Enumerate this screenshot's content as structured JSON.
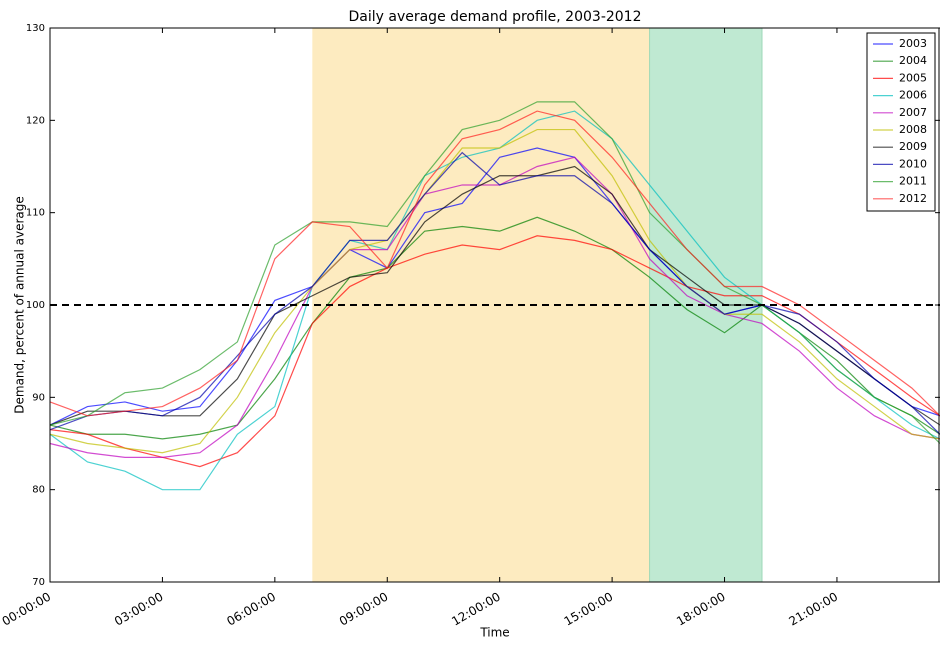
{
  "chart_data": {
    "type": "line",
    "title": "Daily average demand profile, 2003-2012",
    "x_label": "Time",
    "y_label": "Demand, percent of annual average",
    "x": [
      0,
      1,
      2,
      3,
      4,
      5,
      6,
      7,
      8,
      9,
      10,
      11,
      12,
      13,
      14,
      15,
      16,
      17,
      18,
      19,
      20,
      21,
      22,
      23,
      23.75
    ],
    "xlim": [
      0,
      23.75
    ],
    "xticks": [
      {
        "value": 0,
        "label": "00:00:00"
      },
      {
        "value": 3,
        "label": "03:00:00"
      },
      {
        "value": 6,
        "label": "06:00:00"
      },
      {
        "value": 9,
        "label": "09:00:00"
      },
      {
        "value": 12,
        "label": "12:00:00"
      },
      {
        "value": 15,
        "label": "15:00:00"
      },
      {
        "value": 18,
        "label": "18:00:00"
      },
      {
        "value": 21,
        "label": "21:00:00"
      }
    ],
    "ylim": [
      70,
      130
    ],
    "yticks": [
      70,
      80,
      90,
      100,
      110,
      120,
      130
    ],
    "grid": false,
    "legend": "upper right",
    "reference_line": 100,
    "spans": [
      {
        "x0": 7,
        "x1": 16,
        "color": "#fdebc0"
      },
      {
        "x0": 16,
        "x1": 19,
        "color": "#bfe9d2"
      }
    ],
    "series": [
      {
        "name": "2003",
        "color": "#0000ff",
        "values": [
          87,
          89,
          89.5,
          88.5,
          89,
          94,
          100.5,
          102,
          106,
          104,
          110,
          111,
          116,
          117,
          116,
          111,
          106,
          102,
          99,
          100,
          98,
          95,
          92,
          89,
          88
        ]
      },
      {
        "name": "2004",
        "color": "#008000",
        "values": [
          87,
          86,
          86,
          85.5,
          86,
          87,
          92,
          98,
          103,
          104,
          108,
          108.5,
          108,
          109.5,
          108,
          106,
          103,
          99.5,
          97,
          100,
          97,
          94,
          90,
          88,
          86
        ]
      },
      {
        "name": "2005",
        "color": "#ff0000",
        "values": [
          86.5,
          86,
          84.5,
          83.5,
          82.5,
          84,
          88,
          98,
          102,
          104,
          105.5,
          106.5,
          106,
          107.5,
          107,
          106,
          104,
          102,
          101,
          101,
          99,
          96,
          93,
          90,
          88
        ]
      },
      {
        "name": "2006",
        "color": "#00bfbf",
        "values": [
          86,
          83,
          82,
          80,
          80,
          86,
          89,
          102,
          107,
          106,
          114,
          116,
          117,
          120,
          121,
          118,
          113,
          108,
          103,
          100,
          97,
          93,
          90,
          87,
          85.5
        ]
      },
      {
        "name": "2007",
        "color": "#bf00bf",
        "values": [
          85,
          84,
          83.5,
          83.5,
          84,
          87,
          94,
          102,
          106,
          106,
          112,
          113,
          113,
          115,
          116,
          112,
          105,
          101,
          99,
          98,
          95,
          91,
          88,
          86,
          85.5
        ]
      },
      {
        "name": "2008",
        "color": "#bfbf00",
        "values": [
          86,
          85,
          84.5,
          84,
          85,
          90,
          97,
          102,
          106,
          107,
          112,
          117,
          117,
          119,
          119,
          114,
          107,
          102,
          99,
          99,
          96,
          92,
          89,
          86,
          85.5
        ]
      },
      {
        "name": "2009",
        "color": "#000000",
        "values": [
          87,
          88.5,
          88.5,
          88,
          88,
          92,
          99,
          101,
          103,
          103.5,
          109,
          112,
          114,
          114,
          115,
          112,
          106,
          103,
          100,
          100,
          98,
          95,
          92,
          89,
          87
        ]
      },
      {
        "name": "2010",
        "color": "#0000aa",
        "values": [
          86.5,
          88,
          88.5,
          88,
          90,
          94.5,
          99,
          102,
          107,
          107,
          112,
          116.5,
          113,
          114,
          114,
          111,
          106,
          102,
          99,
          100,
          99,
          96,
          92,
          89,
          86
        ]
      },
      {
        "name": "2011",
        "color": "#2ca02c",
        "values": [
          87,
          88,
          90.5,
          91,
          93,
          96,
          106.5,
          109,
          109,
          108.5,
          114,
          119,
          120,
          122,
          122,
          118,
          110,
          106,
          102,
          100,
          97,
          93,
          90,
          88,
          85
        ]
      },
      {
        "name": "2012",
        "color": "#ff2020",
        "values": [
          89.5,
          88,
          88.5,
          89,
          91,
          94,
          105,
          109,
          108.5,
          104,
          113,
          118,
          119,
          121,
          120,
          116,
          111,
          106,
          102,
          102,
          100,
          97,
          94,
          91,
          88
        ]
      }
    ]
  }
}
